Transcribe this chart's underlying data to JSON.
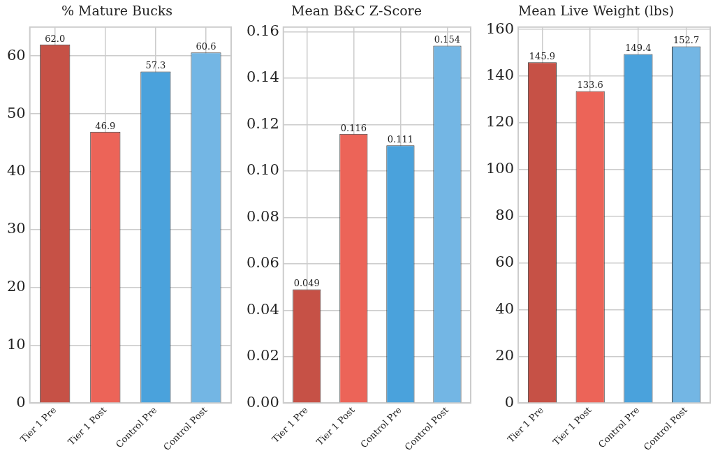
{
  "chart_data": [
    {
      "type": "bar",
      "title": "% Mature Bucks",
      "categories": [
        "Tier 1 Pre",
        "Tier 1 Post",
        "Control Pre",
        "Control Post"
      ],
      "values": [
        62.0,
        46.9,
        57.3,
        60.6
      ],
      "value_labels": [
        "62.0",
        "46.9",
        "57.3",
        "60.6"
      ],
      "colors": [
        "#c65146",
        "#ec6458",
        "#4aa2dc",
        "#73b6e4"
      ],
      "ylim": [
        0,
        65
      ],
      "yticks": [
        0,
        10,
        20,
        30,
        40,
        50,
        60
      ],
      "grid": true,
      "legend": false
    },
    {
      "type": "bar",
      "title": "Mean B&C Z-Score",
      "categories": [
        "Tier 1 Pre",
        "Tier 1 Post",
        "Control Pre",
        "Control Post"
      ],
      "values": [
        0.049,
        0.116,
        0.111,
        0.154
      ],
      "value_labels": [
        "0.049",
        "0.116",
        "0.111",
        "0.154"
      ],
      "colors": [
        "#c65146",
        "#ec6458",
        "#4aa2dc",
        "#73b6e4"
      ],
      "ylim": [
        0,
        0.162
      ],
      "yticks": [
        {
          "value": 0,
          "label": "0.00"
        },
        {
          "value": 0.02,
          "label": "0.02"
        },
        {
          "value": 0.04,
          "label": "0.04"
        },
        {
          "value": 0.06,
          "label": "0.06"
        },
        {
          "value": 0.08,
          "label": "0.08"
        },
        {
          "value": 0.1,
          "label": "0.10"
        },
        {
          "value": 0.12,
          "label": "0.12"
        },
        {
          "value": 0.14,
          "label": "0.14"
        },
        {
          "value": 0.16,
          "label": "0.16"
        }
      ],
      "grid": true,
      "legend": false
    },
    {
      "type": "bar",
      "title": "Mean Live Weight (lbs)",
      "categories": [
        "Tier 1 Pre",
        "Tier 1 Post",
        "Control Pre",
        "Control Post"
      ],
      "values": [
        145.9,
        133.6,
        149.4,
        152.7
      ],
      "value_labels": [
        "145.9",
        "133.6",
        "149.4",
        "152.7"
      ],
      "colors": [
        "#c65146",
        "#ec6458",
        "#4aa2dc",
        "#73b6e4"
      ],
      "ylim": [
        0,
        161
      ],
      "yticks": [
        0,
        20,
        40,
        60,
        80,
        100,
        120,
        140,
        160
      ],
      "grid": true,
      "legend": false
    }
  ]
}
